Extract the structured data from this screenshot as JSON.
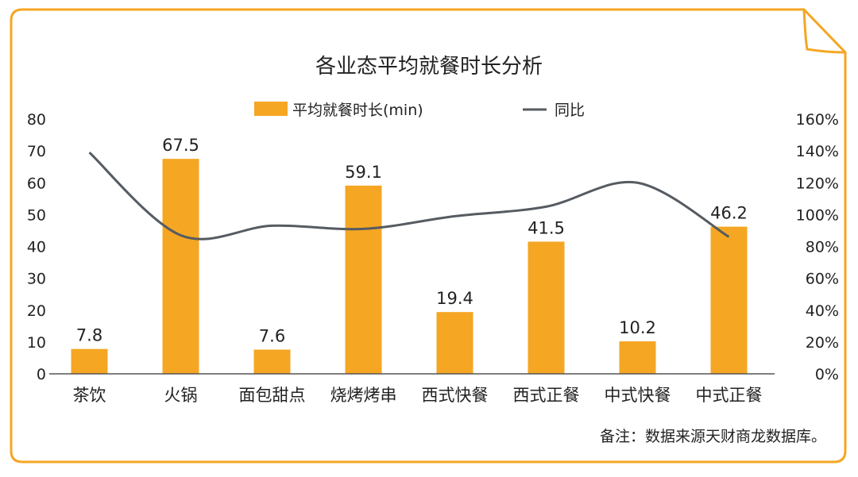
{
  "chart_data": {
    "type": "bar",
    "title": "各业态平均就餐时长分析",
    "categories": [
      "茶饮",
      "火锅",
      "面包甜点",
      "烧烤烤串",
      "西式快餐",
      "西式正餐",
      "中式快餐",
      "中式正餐"
    ],
    "series": [
      {
        "name": "平均就餐时长(min)",
        "type": "bar",
        "axis": "left",
        "values": [
          7.8,
          67.5,
          7.6,
          59.1,
          19.4,
          41.5,
          10.2,
          46.2
        ],
        "data_labels": [
          "7.8",
          "67.5",
          "7.6",
          "59.1",
          "19.4",
          "41.5",
          "10.2",
          "46.2"
        ]
      },
      {
        "name": "同比",
        "type": "line",
        "axis": "right",
        "values": [
          139,
          87,
          93,
          91,
          99,
          105,
          120,
          86
        ]
      }
    ],
    "y_left": {
      "lim": [
        0,
        80
      ],
      "ticks": [
        "0",
        "10",
        "20",
        "30",
        "40",
        "50",
        "60",
        "70",
        "80"
      ]
    },
    "y_right": {
      "lim": [
        0,
        160
      ],
      "ticks": [
        "0%",
        "20%",
        "40%",
        "60%",
        "80%",
        "100%",
        "120%",
        "140%",
        "160%"
      ]
    },
    "legend_position": "top-center",
    "grid": false,
    "colors": {
      "bar": "#F5A623",
      "line": "#555b61",
      "frame": "#F5A623",
      "text": "#222222"
    },
    "note": "备注：数据来源天财商龙数据库。"
  }
}
